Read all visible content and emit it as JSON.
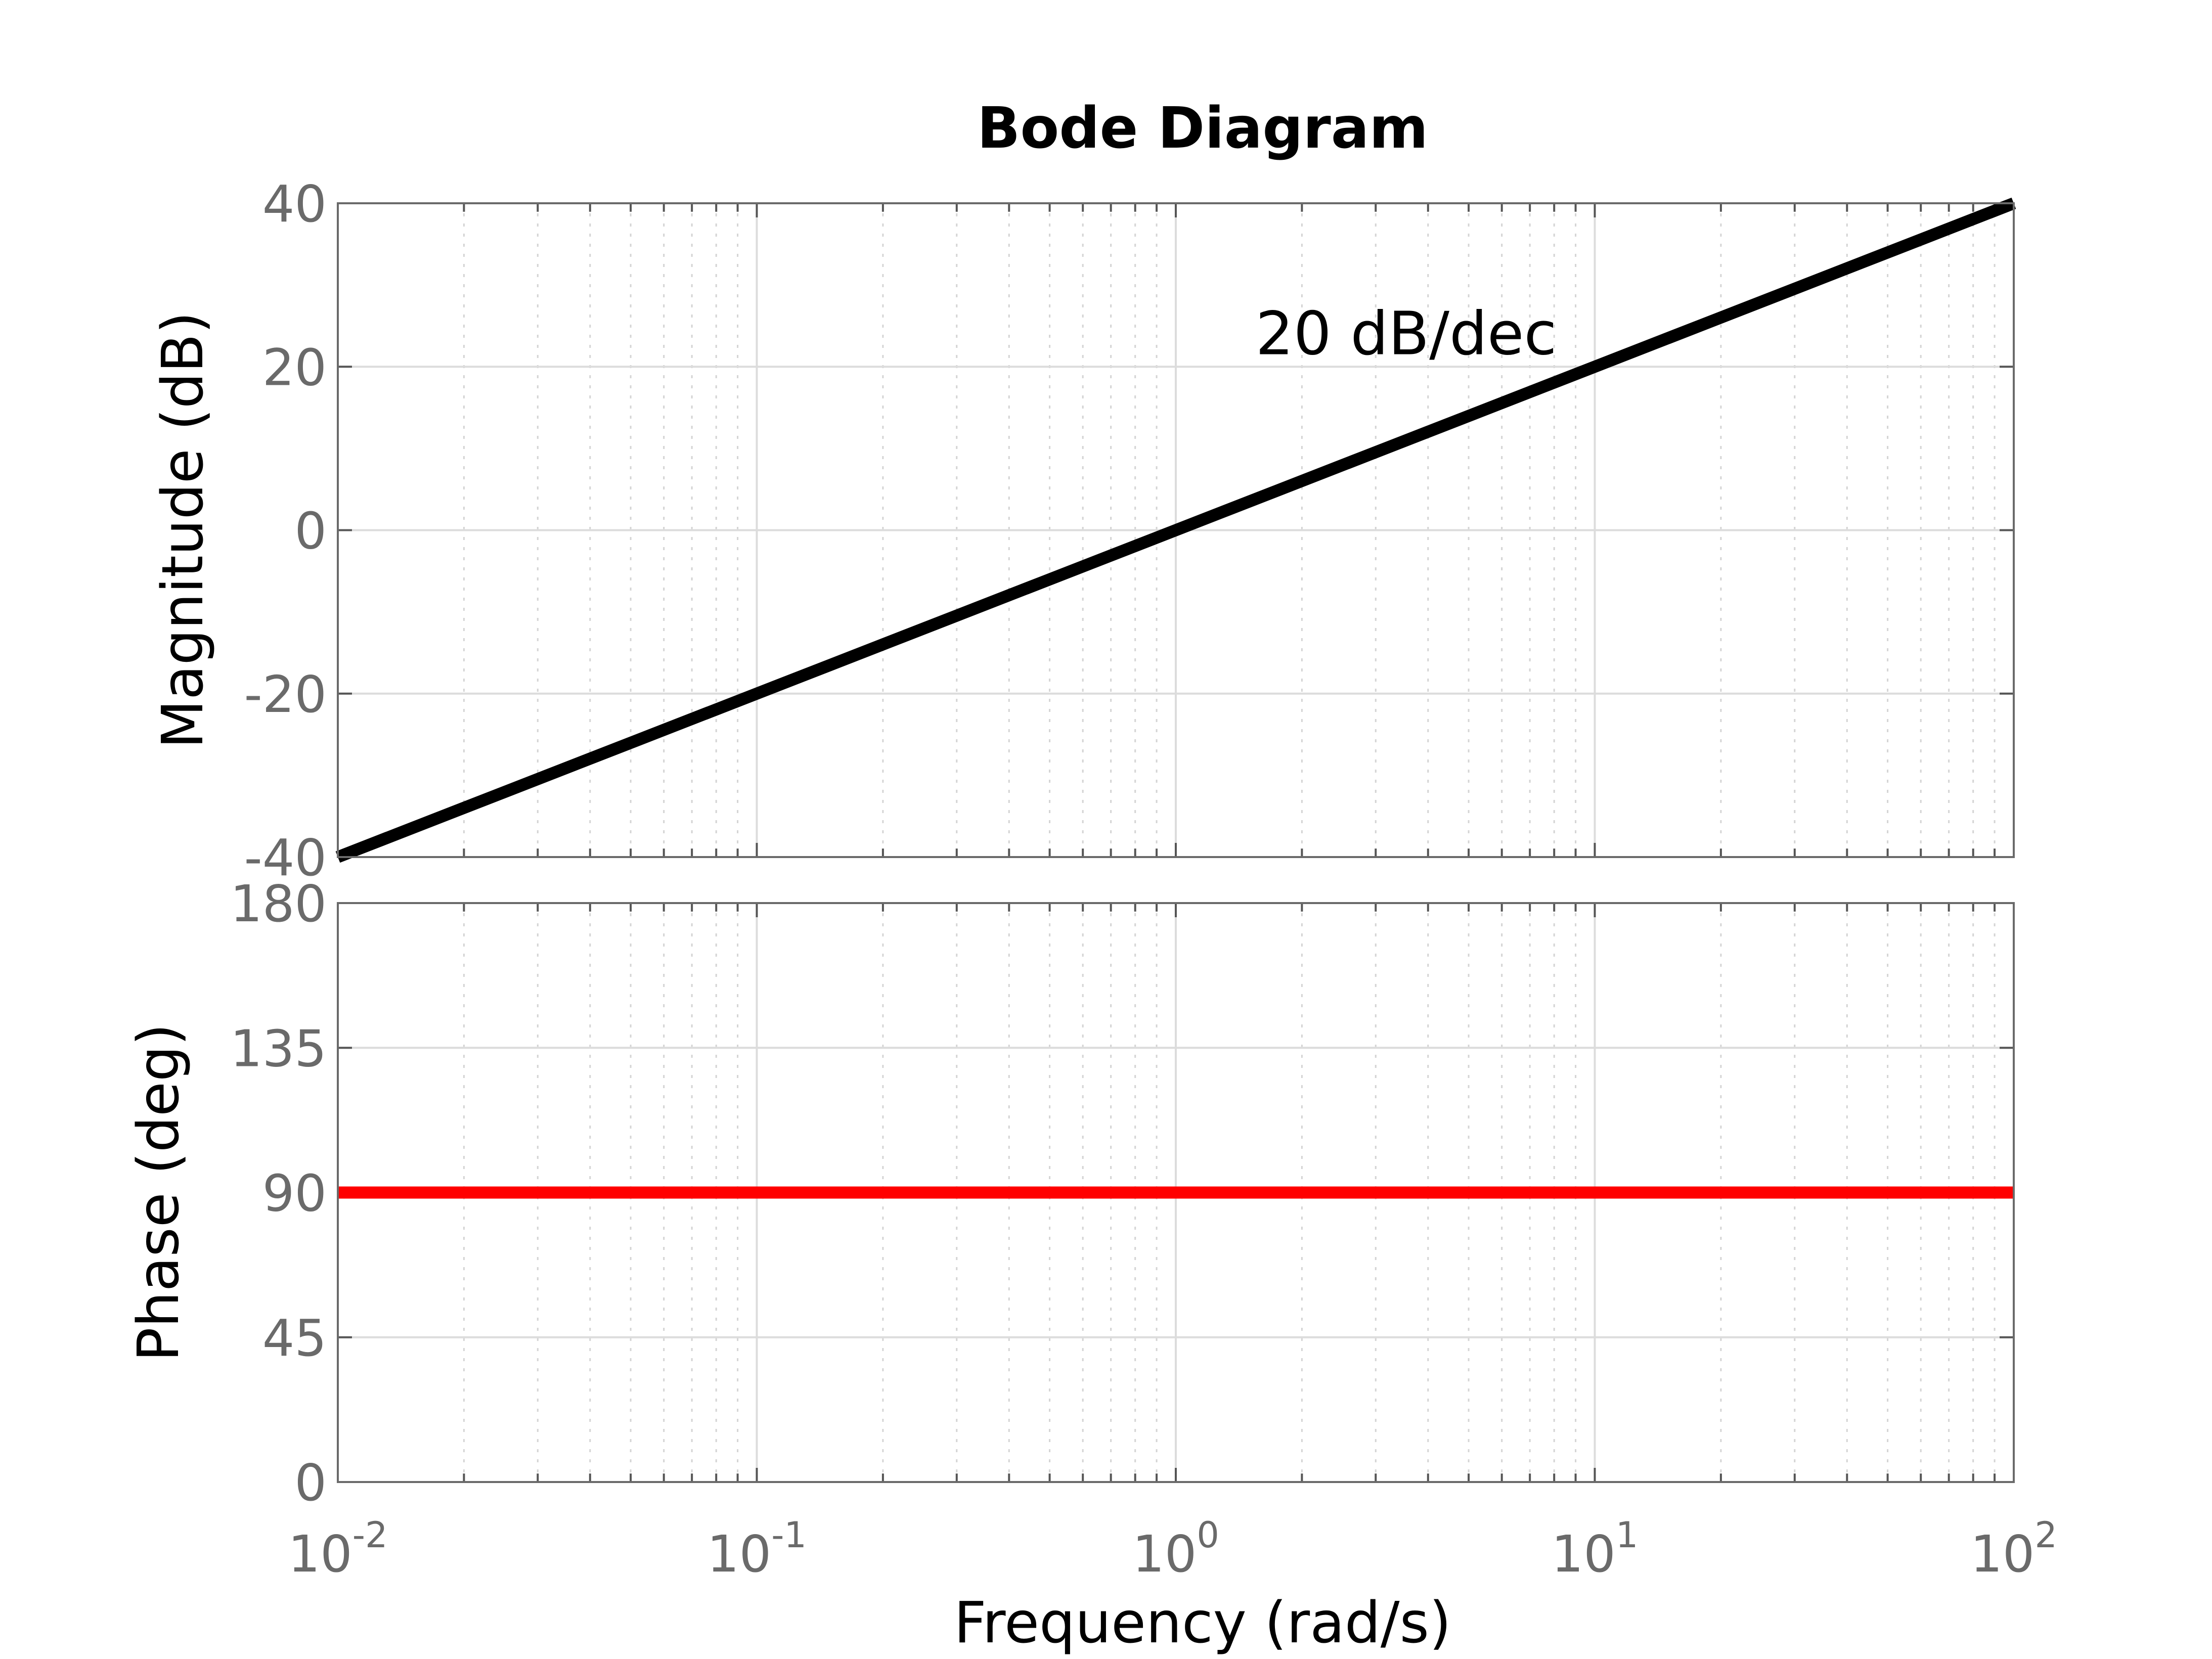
{
  "chart_data": {
    "title": "Bode Diagram",
    "xlabel": "Frequency  (rad/s)",
    "x_scale": "log",
    "xlim": [
      0.01,
      100
    ],
    "x_ticks": [
      {
        "base": "10",
        "exp": "-2",
        "value": 0.01
      },
      {
        "base": "10",
        "exp": "-1",
        "value": 0.1
      },
      {
        "base": "10",
        "exp": "0",
        "value": 1
      },
      {
        "base": "10",
        "exp": "1",
        "value": 10
      },
      {
        "base": "10",
        "exp": "2",
        "value": 100
      }
    ],
    "grid": true,
    "panels": [
      {
        "type": "line",
        "ylabel": "Magnitude (dB)",
        "ylim": [
          -40,
          40
        ],
        "y_ticks": [
          40,
          20,
          0,
          -20,
          -40
        ],
        "y_tick_labels": [
          "40",
          "20",
          "0",
          "-20",
          "-40"
        ],
        "series": [
          {
            "color": "#000000",
            "x": [
              0.01,
              100
            ],
            "y": [
              -40,
              40
            ]
          }
        ],
        "annotations": [
          {
            "text": "20 dB/dec",
            "x": 1.55,
            "y": 24
          }
        ]
      },
      {
        "type": "line",
        "ylabel": "Phase (deg)",
        "ylim": [
          0,
          180
        ],
        "y_ticks": [
          180,
          135,
          90,
          45,
          0
        ],
        "y_tick_labels": [
          "180",
          "135",
          "90",
          "45",
          "0"
        ],
        "series": [
          {
            "color": "#ff0000",
            "x": [
              0.01,
              100
            ],
            "y": [
              90,
              90
            ]
          }
        ]
      }
    ]
  }
}
